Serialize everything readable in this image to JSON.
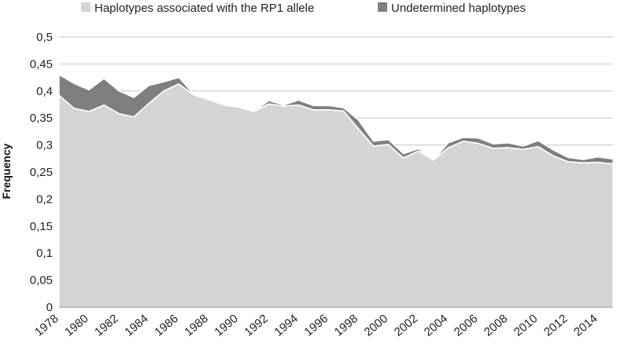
{
  "chart_data": {
    "type": "area",
    "stacked": true,
    "ylabel": "Frequency",
    "xlabel": "",
    "ylim": [
      0,
      0.5
    ],
    "y_ticks": [
      "0",
      "0,05",
      "0,1",
      "0,15",
      "0,2",
      "0,25",
      "0,3",
      "0,35",
      "0,4",
      "0,45",
      "0,5"
    ],
    "grid": true,
    "legend_position": "top",
    "x": [
      1978,
      1979,
      1980,
      1981,
      1982,
      1983,
      1984,
      1985,
      1986,
      1987,
      1988,
      1989,
      1990,
      1991,
      1992,
      1993,
      1994,
      1995,
      1996,
      1997,
      1998,
      1999,
      2000,
      2001,
      2002,
      2003,
      2004,
      2005,
      2006,
      2007,
      2008,
      2009,
      2010,
      2011,
      2012,
      2013,
      2014,
      2015
    ],
    "x_tick_labels": [
      "1978",
      "1980",
      "1982",
      "1984",
      "1986",
      "1988",
      "1990",
      "1992",
      "1994",
      "1996",
      "1998",
      "2000",
      "2002",
      "2004",
      "2006",
      "2008",
      "2010",
      "2012",
      "2014"
    ],
    "series": [
      {
        "name": "Haplotypes associated with the RP1 allele",
        "color": "#d4d4d4",
        "values": [
          0.392,
          0.368,
          0.362,
          0.374,
          0.358,
          0.352,
          0.377,
          0.4,
          0.413,
          0.393,
          0.384,
          0.374,
          0.37,
          0.362,
          0.376,
          0.372,
          0.374,
          0.365,
          0.365,
          0.363,
          0.33,
          0.298,
          0.301,
          0.276,
          0.289,
          0.272,
          0.295,
          0.307,
          0.303,
          0.294,
          0.295,
          0.292,
          0.297,
          0.28,
          0.269,
          0.267,
          0.268,
          0.265
        ]
      },
      {
        "name": "Undetermined haplotypes",
        "color": "#7f7f7f",
        "values": [
          0.038,
          0.046,
          0.04,
          0.049,
          0.042,
          0.036,
          0.033,
          0.017,
          0.012,
          0.001,
          0.001,
          0.0,
          0.0,
          0.0,
          0.006,
          0.002,
          0.009,
          0.008,
          0.008,
          0.006,
          0.016,
          0.009,
          0.009,
          0.008,
          0.004,
          0.0,
          0.009,
          0.007,
          0.01,
          0.008,
          0.009,
          0.006,
          0.011,
          0.011,
          0.008,
          0.006,
          0.01,
          0.009
        ]
      }
    ]
  }
}
